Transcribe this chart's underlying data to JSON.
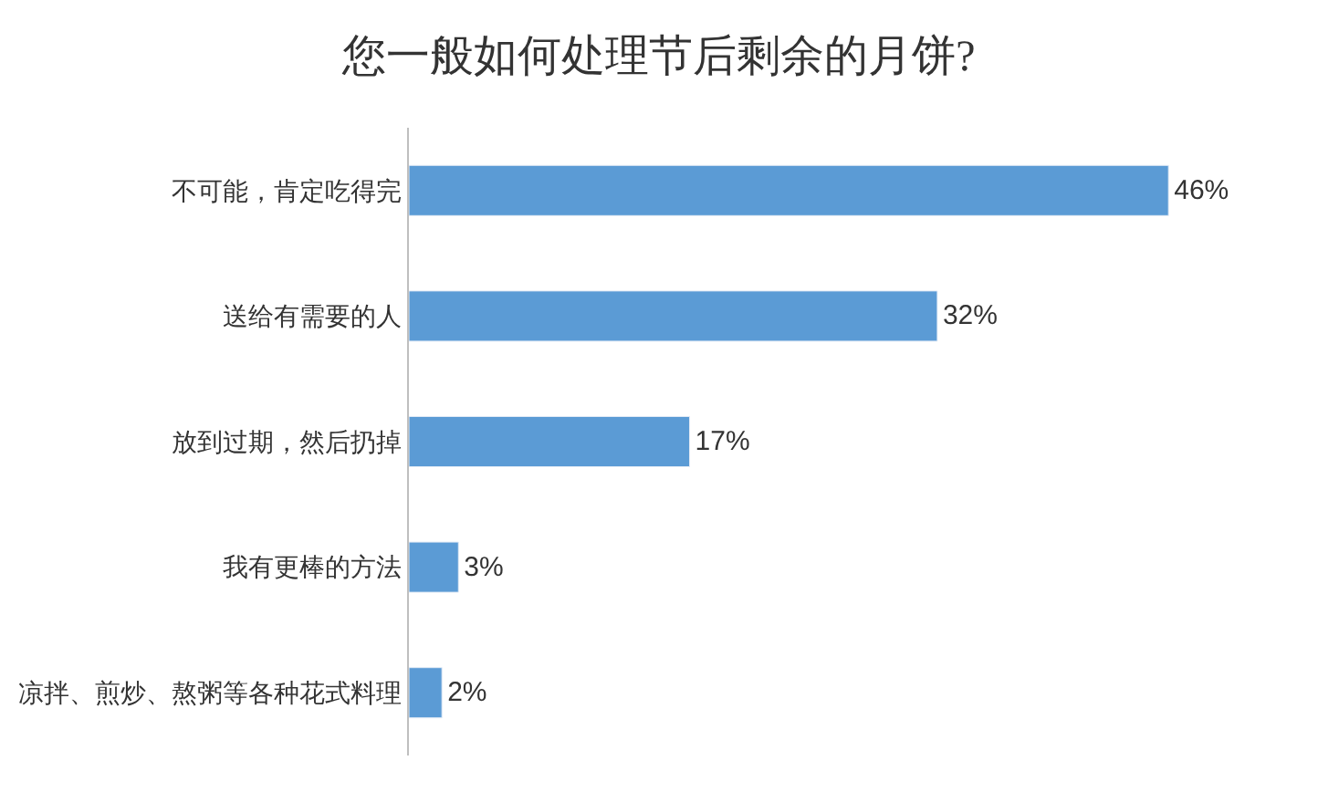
{
  "chart_data": {
    "type": "bar",
    "orientation": "horizontal",
    "title": "您一般如何处理节后剩余的月饼?",
    "categories": [
      "不可能，肯定吃得完",
      "送给有需要的人",
      "放到过期，然后扔掉",
      "我有更棒的方法",
      "凉拌、煎炒、熬粥等各种花式料理"
    ],
    "values": [
      46,
      32,
      17,
      3,
      2
    ],
    "value_labels": [
      "46%",
      "32%",
      "17%",
      "3%",
      "2%"
    ],
    "color": "#5b9bd5"
  }
}
